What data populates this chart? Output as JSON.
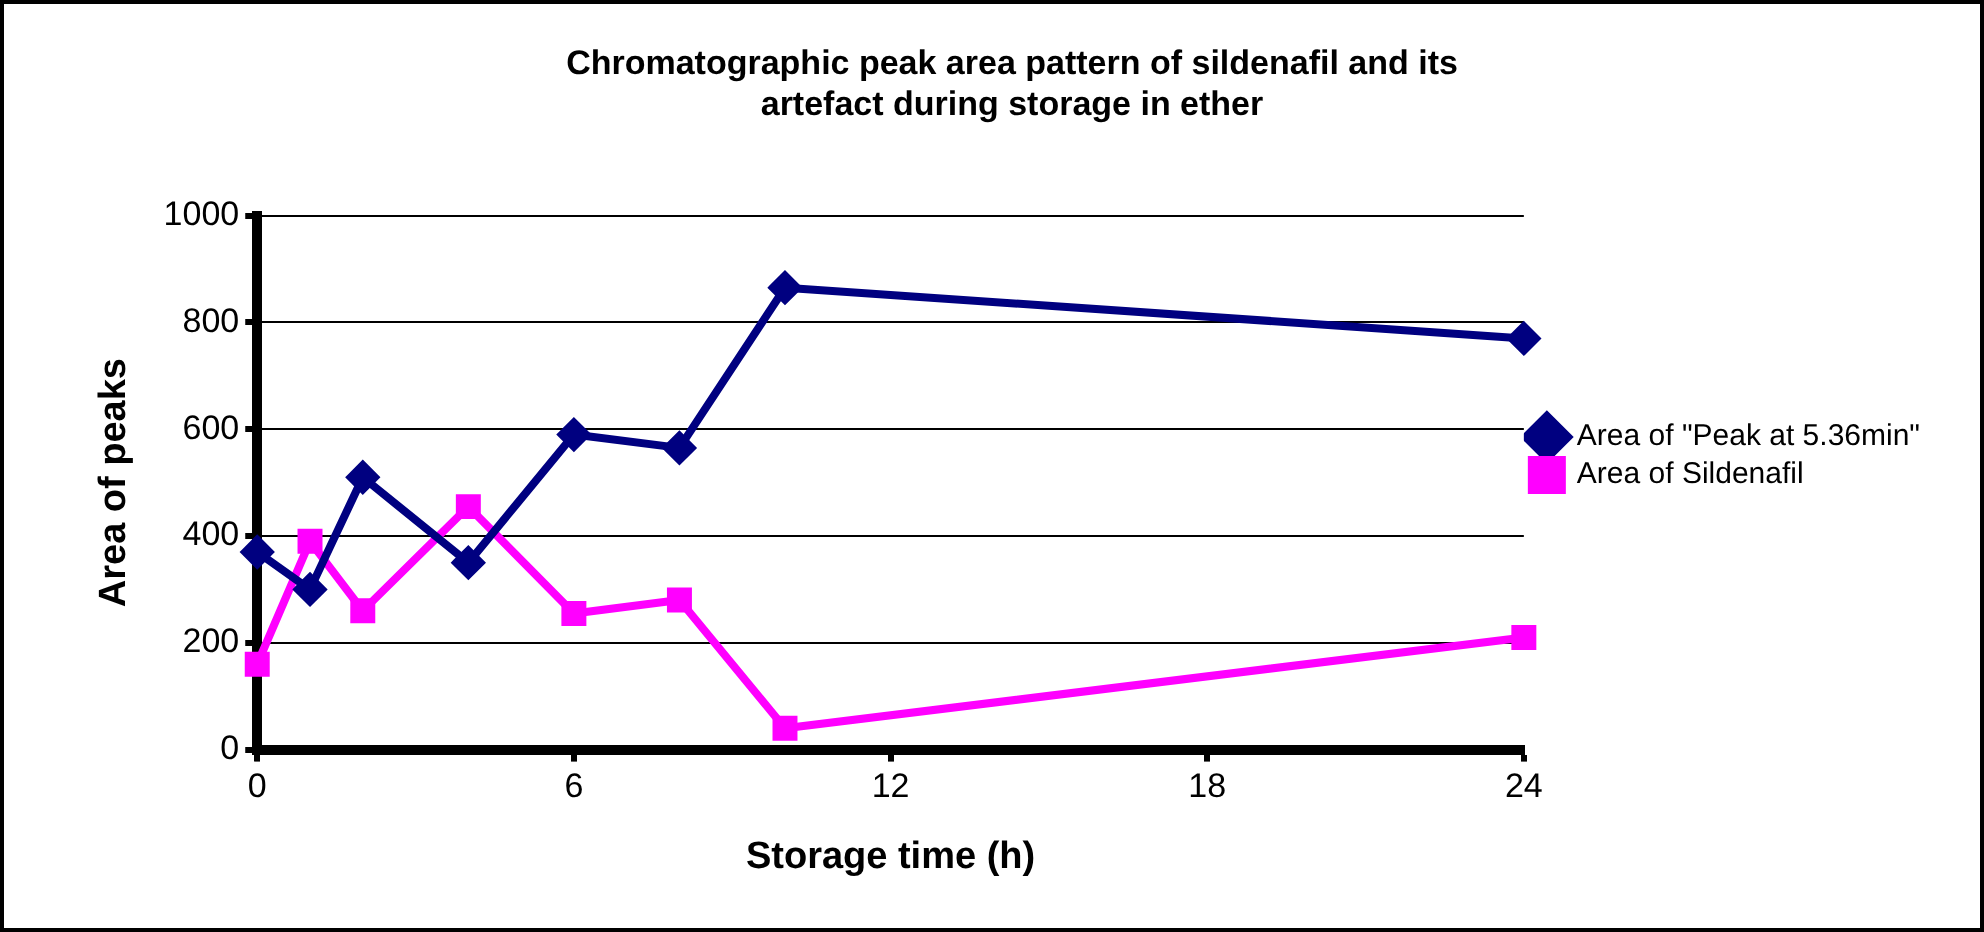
{
  "chart_data": {
    "type": "line",
    "title": "Chromatographic peak area pattern of sildenafil and its artefact during storage in ether",
    "xlabel": "Storage time (h)",
    "ylabel": "Area of peaks",
    "x": [
      0,
      1,
      2,
      4,
      6,
      8,
      10,
      24
    ],
    "series": [
      {
        "name": "Area of \"Peak at 5.36min\"",
        "color": "#000080",
        "marker": "diamond",
        "values": [
          370,
          300,
          510,
          350,
          590,
          565,
          865,
          770
        ]
      },
      {
        "name": "Area of Sildenafil",
        "color": "#ff00ff",
        "marker": "square",
        "values": [
          160,
          390,
          260,
          455,
          255,
          280,
          40,
          210
        ]
      }
    ],
    "xlim": [
      0,
      24
    ],
    "xticks": [
      0,
      6,
      12,
      18,
      24
    ],
    "ylim": [
      0,
      1000
    ],
    "yticks": [
      0,
      200,
      400,
      600,
      800,
      1000
    ],
    "grid": "y",
    "legend": "right",
    "line_style": "solid"
  }
}
